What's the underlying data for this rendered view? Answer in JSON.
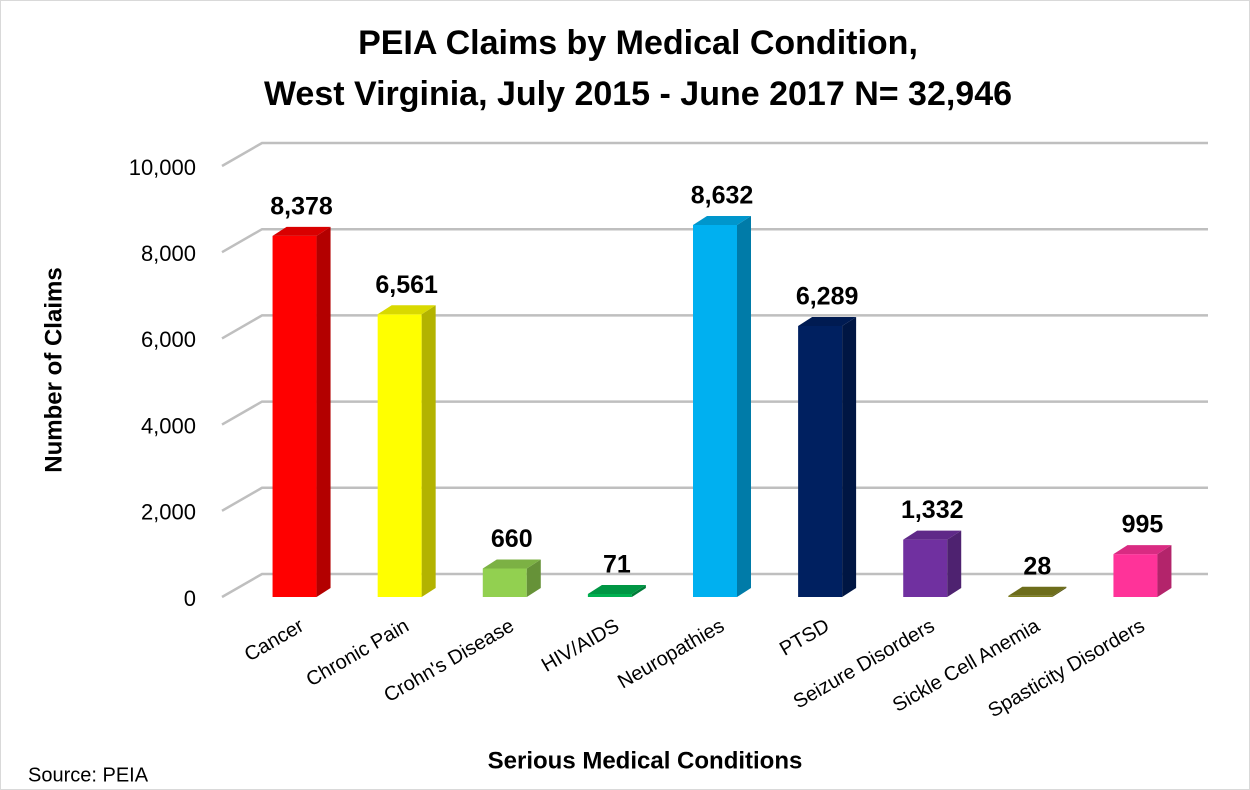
{
  "chart_data": {
    "type": "bar3d",
    "title": [
      "PEIA Claims by Medical Condition,",
      "West Virginia,  July 2015 - June 2017  N= 32,946"
    ],
    "x_label": "Serious Medical Conditions",
    "y_label": "Number of Claims",
    "source": "Source: PEIA",
    "categories": [
      "Cancer",
      "Chronic Pain",
      "Crohn's Disease",
      "HIV/AIDS",
      "Neuropathies",
      "PTSD",
      "Seizure Disorders",
      "Sickle Cell Anemia",
      "Spasticity Disorders"
    ],
    "values": [
      8378,
      6561,
      660,
      71,
      8632,
      6289,
      1332,
      28,
      995
    ],
    "value_labels": [
      "8,378",
      "6,561",
      "660",
      "71",
      "8,632",
      "6,289",
      "1,332",
      "28",
      "995"
    ],
    "colors": [
      "#ff0000",
      "#ffff00",
      "#92d050",
      "#00b050",
      "#00b0f0",
      "#002060",
      "#7030a0",
      "#808020",
      "#ff3399"
    ],
    "ylim": [
      0,
      10000
    ],
    "yticks": [
      0,
      {
        "value": 2000,
        "label": "2,000"
      },
      {
        "value": 4000,
        "label": "4,000"
      },
      {
        "value": 6000,
        "label": "6,000"
      },
      {
        "value": 8000,
        "label": "8,000"
      },
      {
        "value": 10000,
        "label": "10,000"
      }
    ],
    "grid": true
  }
}
